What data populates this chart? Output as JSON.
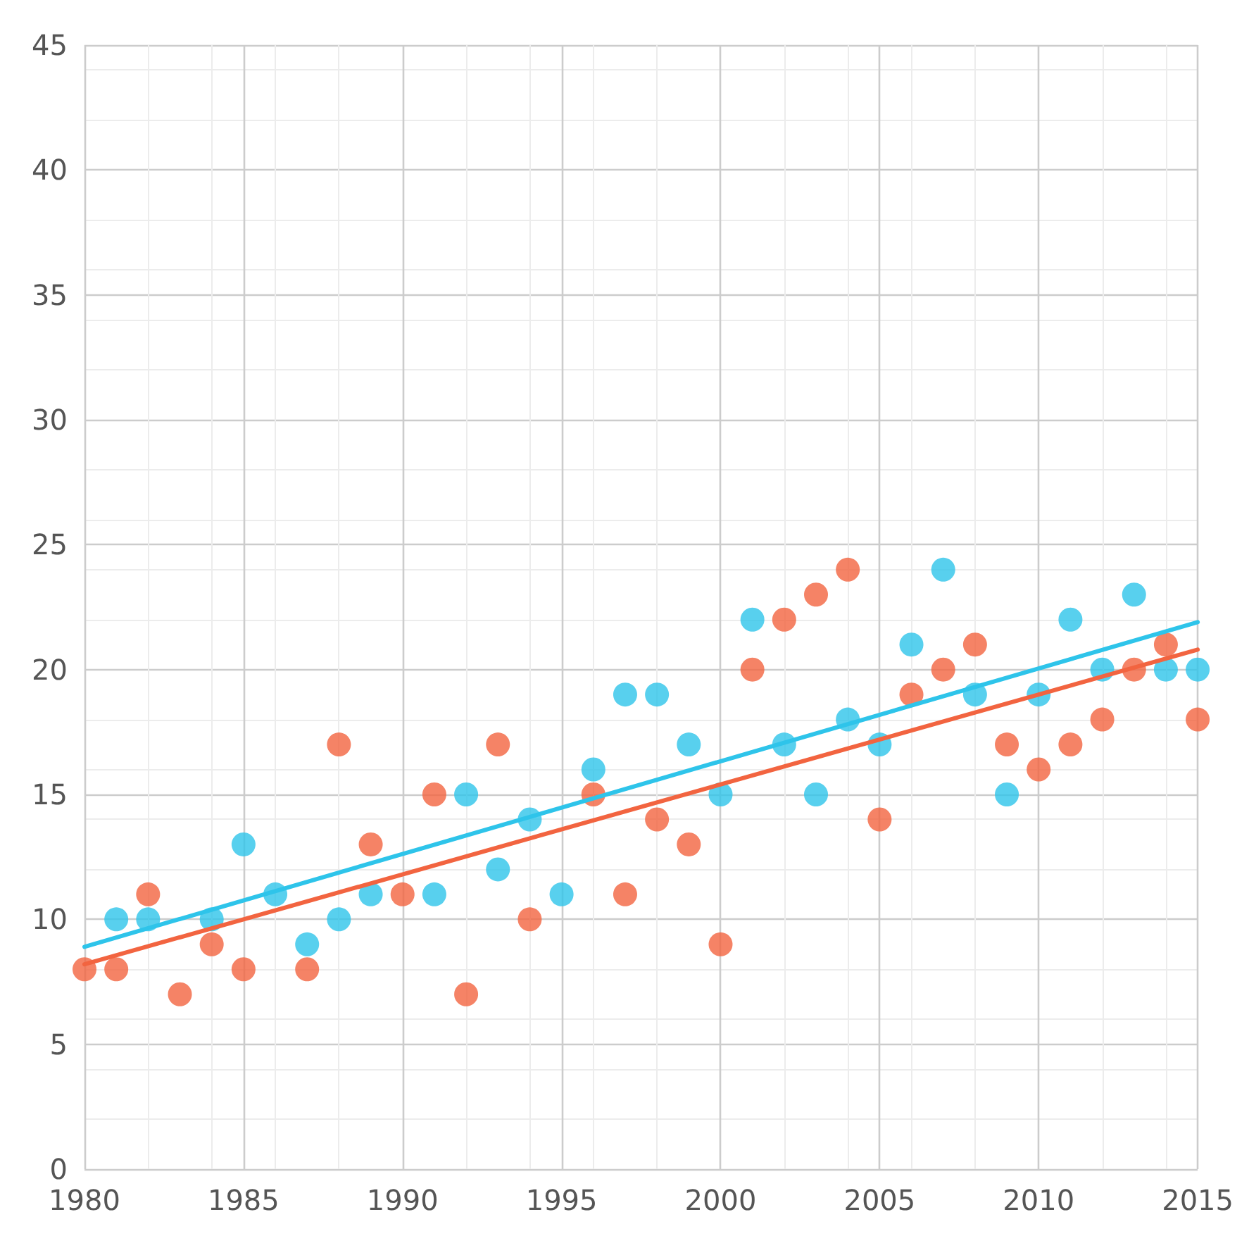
{
  "chart_data": {
    "type": "scatter",
    "xlim": [
      1980,
      2015
    ],
    "xticks": [
      1980,
      1985,
      1990,
      1995,
      2000,
      2005,
      2010,
      2015
    ],
    "ylim": [
      0,
      45
    ],
    "yticks": [
      0,
      5,
      10,
      15,
      20,
      25,
      30,
      35,
      40,
      45
    ],
    "grid": true,
    "marker": "circle",
    "series": [
      {
        "color": "#f26440",
        "x": [
          1980,
          1981,
          1982,
          1983,
          1984,
          1985,
          1987,
          1988,
          1989,
          1990,
          1991,
          1992,
          1993,
          1994,
          1996,
          1997,
          1998,
          1999,
          2000,
          2001,
          2002,
          2003,
          2004,
          2005,
          2006,
          2007,
          2008,
          2009,
          2010,
          2011,
          2012,
          2013,
          2014,
          2015
        ],
        "values": [
          8,
          8,
          11,
          7,
          9,
          8,
          8,
          17,
          13,
          11,
          15,
          7,
          17,
          10,
          15,
          11,
          14,
          13,
          9,
          20,
          22,
          23,
          24,
          14,
          19,
          20,
          21,
          17,
          16,
          17,
          18,
          20,
          21,
          18
        ]
      },
      {
        "color": "#2ec4ea",
        "x": [
          1981,
          1982,
          1984,
          1985,
          1986,
          1987,
          1988,
          1989,
          1991,
          1992,
          1993,
          1994,
          1995,
          1996,
          1997,
          1998,
          1999,
          2000,
          2001,
          2002,
          2003,
          2004,
          2005,
          2006,
          2007,
          2008,
          2009,
          2010,
          2011,
          2012,
          2013,
          2014,
          2015
        ],
        "values": [
          10,
          10,
          10,
          13,
          11,
          9,
          10,
          11,
          11,
          15,
          12,
          14,
          11,
          16,
          19,
          19,
          17,
          15,
          22,
          17,
          15,
          18,
          17,
          21,
          24,
          19,
          15,
          19,
          22,
          20,
          23,
          20,
          20
        ]
      },
      {
        "type": "line",
        "marker": "none",
        "line_style": "solid",
        "color": "#f26440",
        "x": [
          1980,
          2015
        ],
        "values": [
          8.2,
          20.8
        ]
      },
      {
        "type": "line",
        "marker": "none",
        "line_style": "solid",
        "color": "#2ec4ea",
        "x": [
          1980,
          2015
        ],
        "values": [
          8.9,
          21.9
        ]
      }
    ]
  }
}
